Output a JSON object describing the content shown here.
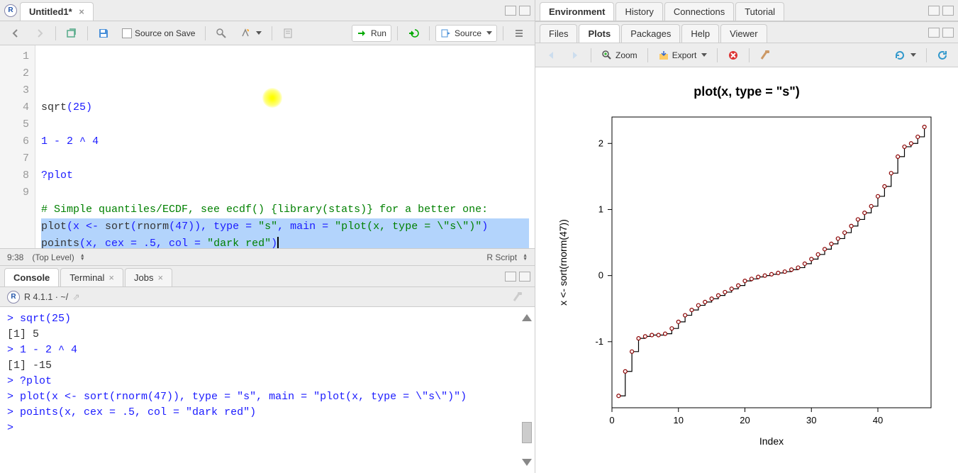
{
  "editor": {
    "tab_title": "Untitled1*",
    "source_on_save_label": "Source on Save",
    "run_label": "Run",
    "source_label": "Source",
    "cursor_pos": "9:38",
    "scope_label": "(Top Level)",
    "lang_label": "R Script",
    "gutter_lines": [
      "1",
      "2",
      "3",
      "4",
      "5",
      "6",
      "7",
      "8",
      "",
      "9"
    ],
    "selection_line_indices": [
      7,
      8
    ]
  },
  "code_lines": [
    {
      "type": "code",
      "spans": [
        {
          "t": "sqrt",
          "c": "fn"
        },
        {
          "t": "(",
          "c": "op"
        },
        {
          "t": "25",
          "c": "num"
        },
        {
          "t": ")",
          "c": "op"
        }
      ]
    },
    {
      "type": "blank"
    },
    {
      "type": "code",
      "spans": [
        {
          "t": "1",
          "c": "num"
        },
        {
          "t": " - ",
          "c": "op"
        },
        {
          "t": "2",
          "c": "num"
        },
        {
          "t": " ^ ",
          "c": "op"
        },
        {
          "t": "4",
          "c": "num"
        }
      ]
    },
    {
      "type": "blank"
    },
    {
      "type": "code",
      "spans": [
        {
          "t": "?plot",
          "c": "kw"
        }
      ]
    },
    {
      "type": "blank"
    },
    {
      "type": "cmt",
      "text": "# Simple quantiles/ECDF, see ecdf() {library(stats)} for a better one:"
    },
    {
      "type": "code",
      "spans": [
        {
          "t": "plot",
          "c": "fn"
        },
        {
          "t": "(x <- ",
          "c": "op"
        },
        {
          "t": "sort",
          "c": "fn"
        },
        {
          "t": "(",
          "c": "op"
        },
        {
          "t": "rnorm",
          "c": "fn"
        },
        {
          "t": "(",
          "c": "op"
        },
        {
          "t": "47",
          "c": "num"
        },
        {
          "t": ")), type = ",
          "c": "op"
        },
        {
          "t": "\"s\"",
          "c": "str"
        },
        {
          "t": ", main = ",
          "c": "op"
        },
        {
          "t": "\"plot(x, type = \\\"s\\\")\"",
          "c": "str"
        },
        {
          "t": ")",
          "c": "op"
        }
      ]
    },
    {
      "type": "code",
      "spans": [
        {
          "t": "points",
          "c": "fn"
        },
        {
          "t": "(x, cex = ",
          "c": "op"
        },
        {
          "t": ".5",
          "c": "num"
        },
        {
          "t": ", col = ",
          "c": "op"
        },
        {
          "t": "\"dark red\"",
          "c": "str"
        },
        {
          "t": ")",
          "c": "op"
        }
      ],
      "cursor": true
    }
  ],
  "console": {
    "tabs": [
      "Console",
      "Terminal",
      "Jobs"
    ],
    "active_tab": 0,
    "header": "R 4.1.1 · ~/",
    "lines": [
      {
        "p": "> ",
        "t": "sqrt(25)"
      },
      {
        "p": "",
        "t": "[1] 5",
        "out": true
      },
      {
        "p": "> ",
        "t": "1 - 2 ^ 4"
      },
      {
        "p": "",
        "t": "[1] -15",
        "out": true
      },
      {
        "p": "> ",
        "t": "?plot"
      },
      {
        "p": "> ",
        "t": "plot(x <- sort(rnorm(47)), type = \"s\", main = \"plot(x, type = \\\"s\\\")\")"
      },
      {
        "p": "> ",
        "t": "points(x, cex = .5, col = \"dark red\")"
      },
      {
        "p": "> ",
        "t": ""
      }
    ]
  },
  "env_tabs": [
    "Environment",
    "History",
    "Connections",
    "Tutorial"
  ],
  "files_tabs": [
    "Files",
    "Plots",
    "Packages",
    "Help",
    "Viewer"
  ],
  "files_active": 1,
  "plot_toolbar": {
    "zoom": "Zoom",
    "export": "Export"
  },
  "plot": {
    "title": "plot(x, type = \"s\")",
    "xlabel": "Index",
    "ylabel": "x <- sort(rnorm(47))",
    "x_ticks": [
      0,
      10,
      20,
      30,
      40
    ],
    "y_ticks": [
      -1,
      0,
      1,
      2
    ],
    "xlim": [
      0,
      48
    ],
    "ylim": [
      -2.0,
      2.4
    ],
    "point_color": "#8b0000",
    "line_color": "#000000",
    "bg": "#ffffff",
    "title_fontsize": 18,
    "label_fontsize": 14,
    "values": [
      -1.82,
      -1.45,
      -1.15,
      -0.95,
      -0.92,
      -0.9,
      -0.9,
      -0.88,
      -0.8,
      -0.7,
      -0.6,
      -0.52,
      -0.45,
      -0.4,
      -0.35,
      -0.3,
      -0.25,
      -0.2,
      -0.15,
      -0.08,
      -0.05,
      -0.02,
      0.0,
      0.02,
      0.04,
      0.06,
      0.09,
      0.12,
      0.18,
      0.25,
      0.32,
      0.4,
      0.48,
      0.56,
      0.65,
      0.75,
      0.85,
      0.95,
      1.05,
      1.2,
      1.35,
      1.55,
      1.8,
      1.95,
      2.0,
      2.1,
      2.25
    ]
  },
  "colors": {
    "panel_bg": "#ededed",
    "border": "#cccccc",
    "selection": "#b3d4fc",
    "code_num": "#1a1aff",
    "code_str": "#008000",
    "code_cmt": "#008000"
  }
}
